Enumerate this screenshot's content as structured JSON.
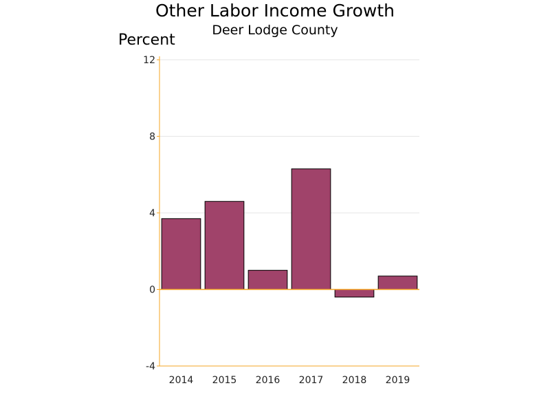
{
  "chart_data": {
    "type": "bar",
    "title": "Other Labor Income Growth",
    "subtitle": "Deer Lodge County",
    "ylabel": "Percent",
    "xlabel": "",
    "categories": [
      "2014",
      "2015",
      "2016",
      "2017",
      "2018",
      "2019"
    ],
    "values": [
      3.7,
      4.6,
      1.0,
      6.3,
      -0.4,
      0.7
    ],
    "ylim": [
      -4,
      12
    ],
    "yticks": [
      -4,
      0,
      4,
      8,
      12
    ],
    "grid": true,
    "colors": {
      "bar_fill": "#a0436a",
      "bar_stroke": "#000000",
      "axis": "#f5a623",
      "grid": "#e6e6e6"
    }
  }
}
